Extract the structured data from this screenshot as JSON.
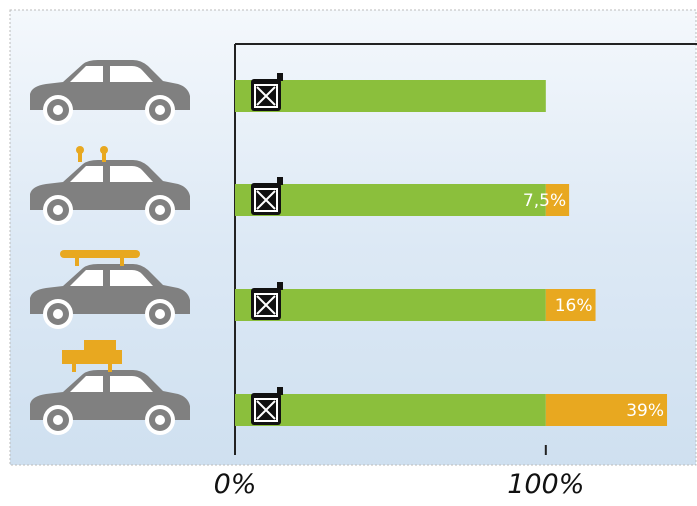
{
  "chart_data": {
    "type": "bar",
    "orientation": "horizontal",
    "stacked": true,
    "categories": [
      null,
      null,
      null,
      null
    ],
    "series": [
      {
        "color": "#8bbf3c",
        "values": [
          100,
          100,
          100,
          100
        ]
      },
      {
        "color": "#e8a820",
        "values": [
          null,
          7.5,
          16,
          39
        ],
        "value_labels": [
          null,
          "7,5%",
          "16%",
          "39%"
        ]
      }
    ],
    "xlim": [
      0,
      148
    ],
    "xticks": [
      {
        "value": 0,
        "label": "0%"
      },
      {
        "value": 100,
        "label": "100%"
      }
    ]
  }
}
